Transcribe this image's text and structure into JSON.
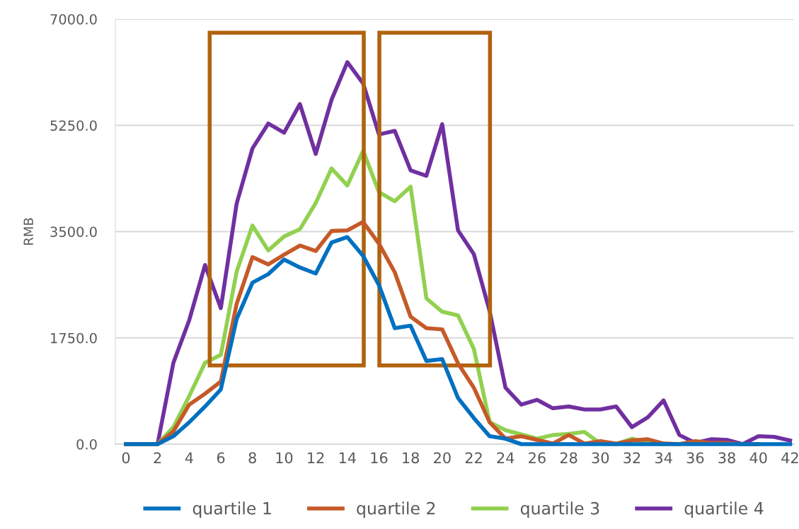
{
  "chart_data": {
    "type": "line",
    "ylabel": "RMB",
    "categories": [
      "0",
      null,
      "2",
      null,
      "4",
      null,
      "6",
      null,
      "8",
      null,
      "10",
      null,
      "12",
      null,
      "14",
      null,
      "16",
      null,
      "18",
      null,
      "20",
      null,
      "22",
      null,
      "24",
      null,
      "26",
      null,
      "28",
      null,
      "30",
      null,
      "32",
      null,
      "34",
      null,
      "36",
      null,
      "38",
      null,
      "40",
      null,
      "42"
    ],
    "ylim": [
      0,
      7000
    ],
    "yticks": [
      {
        "value": 0,
        "label": "0.0"
      },
      {
        "value": 1750,
        "label": "1750.0"
      },
      {
        "value": 3500,
        "label": "3500.0"
      },
      {
        "value": 5250,
        "label": "5250.0"
      },
      {
        "value": 7000,
        "label": "7000.0"
      }
    ],
    "grid": "y",
    "legend": "bottom",
    "marker": "none",
    "line_style": "solid",
    "series": [
      {
        "name": "quartile 1",
        "color": "#0070c0",
        "values": [
          0,
          0,
          0,
          130,
          360,
          620,
          900,
          2060,
          2660,
          2800,
          3040,
          2910,
          2810,
          3320,
          3410,
          3100,
          2620,
          1910,
          1950,
          1370,
          1400,
          760,
          430,
          130,
          90,
          0,
          0,
          0,
          0,
          0,
          0,
          0,
          0,
          0,
          0,
          0,
          0,
          0,
          0,
          0,
          0,
          0,
          0
        ]
      },
      {
        "name": "quartile 2",
        "color": "#c55a28",
        "values": [
          0,
          0,
          0,
          210,
          650,
          830,
          1030,
          2310,
          3080,
          2960,
          3120,
          3270,
          3180,
          3510,
          3520,
          3660,
          3300,
          2830,
          2100,
          1910,
          1890,
          1330,
          930,
          360,
          90,
          130,
          70,
          10,
          150,
          10,
          50,
          10,
          60,
          80,
          10,
          0,
          50,
          20,
          20,
          0,
          0,
          null,
          null
        ]
      },
      {
        "name": "quartile 3",
        "color": "#92d050",
        "values": [
          0,
          0,
          0,
          280,
          790,
          1340,
          1470,
          2840,
          3600,
          3190,
          3420,
          3540,
          3970,
          4540,
          4260,
          4830,
          4150,
          4000,
          4240,
          2400,
          2180,
          2120,
          1570,
          360,
          230,
          160,
          90,
          150,
          170,
          200,
          10,
          0,
          90,
          10,
          0,
          null,
          null,
          null,
          null,
          null,
          null,
          null,
          null
        ]
      },
      {
        "name": "quartile 4",
        "color": "#7030a0",
        "values": [
          0,
          0,
          0,
          1340,
          2040,
          2950,
          2240,
          3960,
          4870,
          5280,
          5130,
          5600,
          4780,
          5670,
          6290,
          5940,
          5100,
          5160,
          4510,
          4420,
          5270,
          3520,
          3130,
          2190,
          930,
          650,
          730,
          590,
          620,
          570,
          570,
          620,
          280,
          440,
          720,
          150,
          20,
          80,
          70,
          0,
          130,
          120,
          60
        ]
      }
    ]
  }
}
